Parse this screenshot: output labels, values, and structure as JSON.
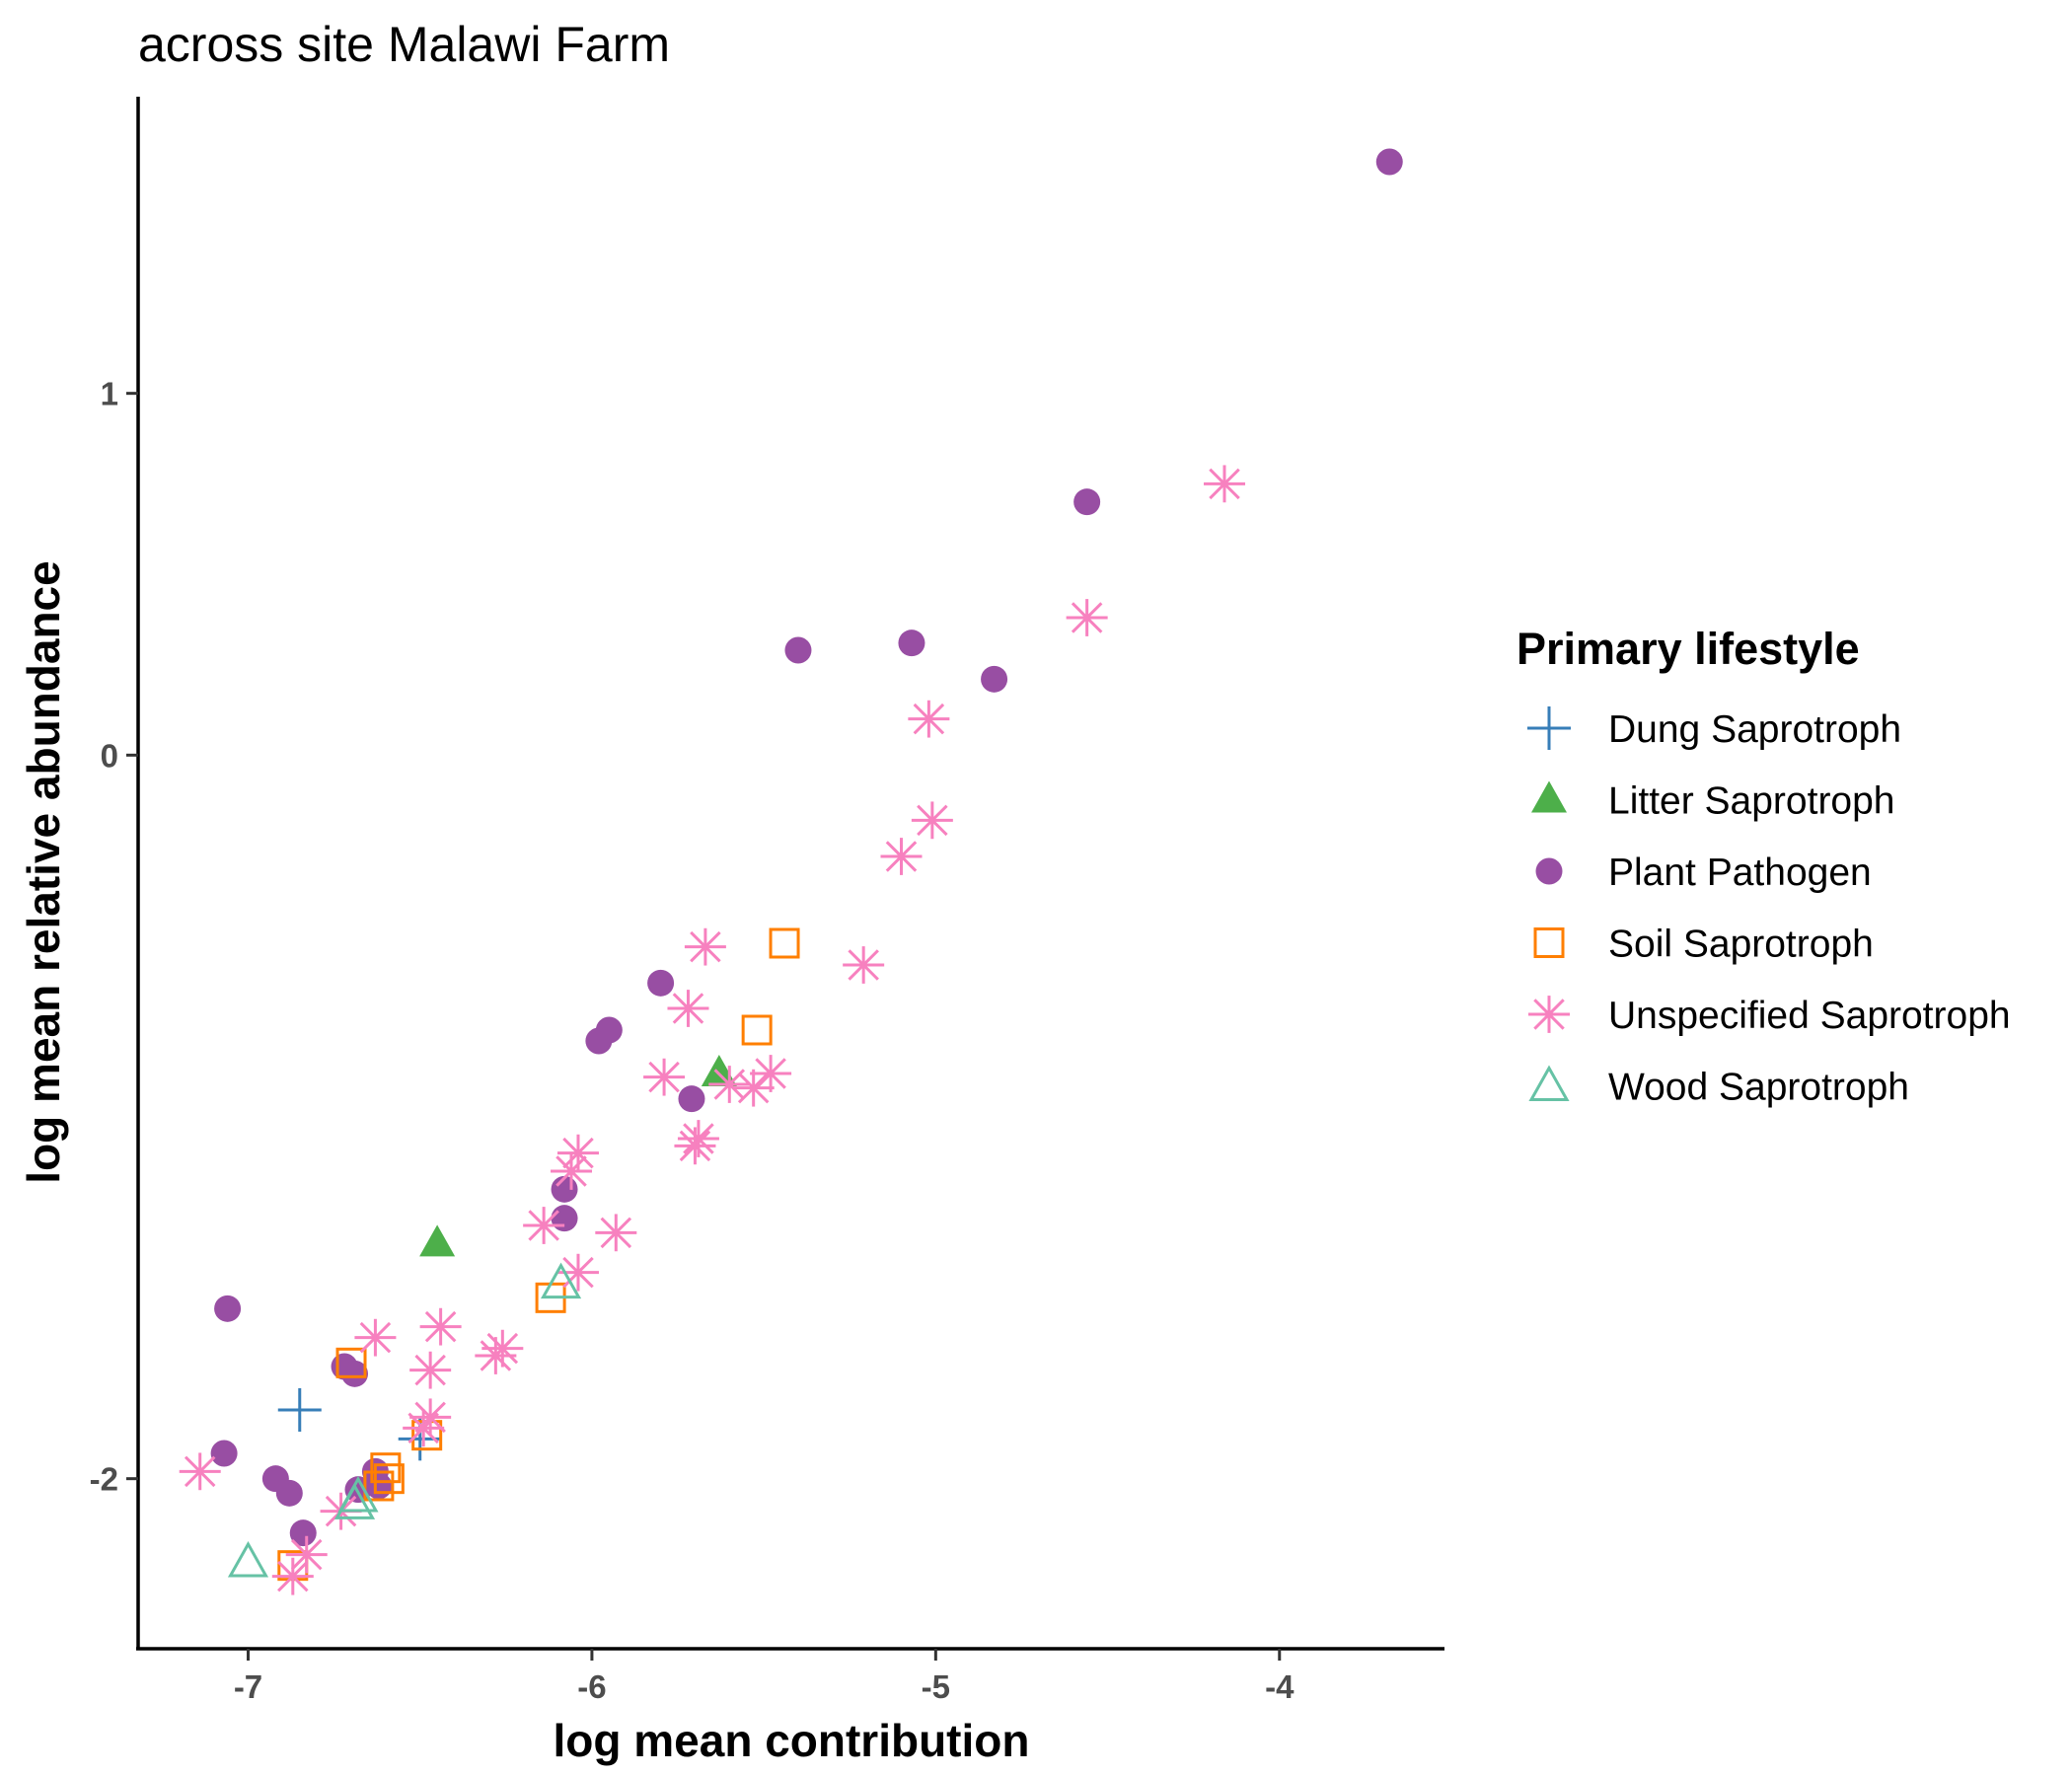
{
  "chart_data": {
    "type": "scatter",
    "title": "across site Malawi Farm",
    "xlabel": "log mean contribution",
    "ylabel": "log mean relative abundance",
    "xlim": [
      -7.32,
      -3.52
    ],
    "ylim": [
      -2.47,
      1.82
    ],
    "x_ticks": [
      -7,
      -6,
      -5,
      -4
    ],
    "y_ticks": [
      -2,
      0,
      1
    ],
    "x_tick_labels": [
      "-7",
      "-6",
      "-5",
      "-4"
    ],
    "y_tick_labels": [
      "-2",
      "0",
      "1"
    ],
    "grid": false,
    "legend": {
      "title": "Primary lifestyle",
      "position": "right"
    },
    "series": [
      {
        "name": "Dung Saprotroph",
        "color": "#377EB8",
        "shape": "plus",
        "points": [
          [
            -6.85,
            -1.81
          ],
          [
            -6.5,
            -1.89
          ]
        ]
      },
      {
        "name": "Litter Saprotroph",
        "color": "#4DAF4A",
        "shape": "triangle-filled",
        "points": [
          [
            -6.45,
            -1.35
          ],
          [
            -5.63,
            -0.88
          ]
        ]
      },
      {
        "name": "Plant Pathogen",
        "color": "#984EA3",
        "shape": "circle-filled",
        "points": [
          [
            -3.68,
            1.64
          ],
          [
            -4.56,
            0.7
          ],
          [
            -5.07,
            0.31
          ],
          [
            -5.4,
            0.29
          ],
          [
            -4.83,
            0.21
          ],
          [
            -5.8,
            -0.63
          ],
          [
            -5.95,
            -0.76
          ],
          [
            -5.98,
            -0.79
          ],
          [
            -5.71,
            -0.95
          ],
          [
            -6.08,
            -1.2
          ],
          [
            -6.08,
            -1.28
          ],
          [
            -7.06,
            -1.53
          ],
          [
            -6.72,
            -1.69
          ],
          [
            -6.69,
            -1.71
          ],
          [
            -7.07,
            -1.93
          ],
          [
            -6.92,
            -2.0
          ],
          [
            -6.88,
            -2.04
          ],
          [
            -6.68,
            -2.03
          ],
          [
            -6.63,
            -1.98
          ],
          [
            -6.62,
            -2.02
          ],
          [
            -6.84,
            -2.15
          ]
        ]
      },
      {
        "name": "Soil Saprotroph",
        "color": "#FF7F00",
        "shape": "square-open",
        "points": [
          [
            -5.44,
            -0.52
          ],
          [
            -5.52,
            -0.76
          ],
          [
            -6.12,
            -1.5
          ],
          [
            -6.7,
            -1.68
          ],
          [
            -6.48,
            -1.88
          ],
          [
            -6.6,
            -1.97
          ],
          [
            -6.59,
            -2.0
          ],
          [
            -6.62,
            -2.02
          ],
          [
            -6.87,
            -2.24
          ]
        ]
      },
      {
        "name": "Unspecified Saprotroph",
        "color": "#F781BF",
        "shape": "asterisk",
        "points": [
          [
            -4.16,
            0.75
          ],
          [
            -4.56,
            0.38
          ],
          [
            -5.02,
            0.1
          ],
          [
            -5.01,
            -0.18
          ],
          [
            -5.1,
            -0.28
          ],
          [
            -5.21,
            -0.58
          ],
          [
            -5.67,
            -0.53
          ],
          [
            -5.72,
            -0.7
          ],
          [
            -5.79,
            -0.89
          ],
          [
            -5.6,
            -0.91
          ],
          [
            -5.53,
            -0.92
          ],
          [
            -5.48,
            -0.88
          ],
          [
            -5.69,
            -1.06
          ],
          [
            -5.7,
            -1.08
          ],
          [
            -6.04,
            -1.1
          ],
          [
            -6.06,
            -1.15
          ],
          [
            -6.14,
            -1.3
          ],
          [
            -5.93,
            -1.32
          ],
          [
            -6.04,
            -1.43
          ],
          [
            -6.44,
            -1.58
          ],
          [
            -6.63,
            -1.61
          ],
          [
            -6.47,
            -1.7
          ],
          [
            -6.26,
            -1.64
          ],
          [
            -6.28,
            -1.66
          ],
          [
            -6.47,
            -1.83
          ],
          [
            -6.49,
            -1.86
          ],
          [
            -7.14,
            -1.98
          ],
          [
            -6.73,
            -2.09
          ],
          [
            -6.83,
            -2.21
          ],
          [
            -6.87,
            -2.27
          ]
        ]
      },
      {
        "name": "Wood Saprotroph",
        "color": "#66C2A5",
        "shape": "triangle-open",
        "points": [
          [
            -6.09,
            -1.46
          ],
          [
            -6.69,
            -2.07
          ],
          [
            -6.68,
            -2.05
          ],
          [
            -7.0,
            -2.23
          ]
        ]
      }
    ]
  }
}
